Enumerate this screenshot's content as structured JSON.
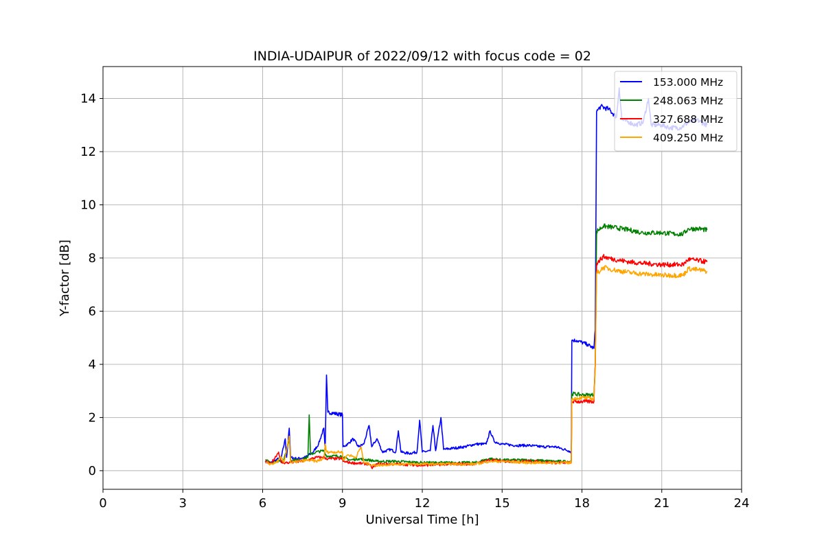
{
  "chart_data": {
    "type": "line",
    "title": "INDIA-UDAIPUR of 2022/09/12 with focus code = 02",
    "xlabel": "Universal Time [h]",
    "ylabel": "Y-factor [dB]",
    "xlim": [
      0,
      24
    ],
    "ylim": [
      -0.7,
      15.2
    ],
    "xticks": [
      0,
      3,
      6,
      9,
      12,
      15,
      18,
      21,
      24
    ],
    "yticks": [
      0,
      2,
      4,
      6,
      8,
      10,
      12,
      14
    ],
    "grid": true,
    "legend_position": "top-right",
    "series": [
      {
        "name": "153.000 MHz",
        "color": "#0000ff",
        "points": [
          [
            6.1,
            0.35
          ],
          [
            6.3,
            0.3
          ],
          [
            6.5,
            0.4
          ],
          [
            6.7,
            0.5
          ],
          [
            6.85,
            1.2
          ],
          [
            6.9,
            0.5
          ],
          [
            7.0,
            1.6
          ],
          [
            7.05,
            0.5
          ],
          [
            7.3,
            0.45
          ],
          [
            7.6,
            0.5
          ],
          [
            7.9,
            0.7
          ],
          [
            8.1,
            1.0
          ],
          [
            8.3,
            1.6
          ],
          [
            8.35,
            0.8
          ],
          [
            8.4,
            3.6
          ],
          [
            8.45,
            2.2
          ],
          [
            9.0,
            2.1
          ],
          [
            9.02,
            0.9
          ],
          [
            9.2,
            1.0
          ],
          [
            9.4,
            1.2
          ],
          [
            9.6,
            0.9
          ],
          [
            9.8,
            1.0
          ],
          [
            10.0,
            1.7
          ],
          [
            10.1,
            0.9
          ],
          [
            10.3,
            1.2
          ],
          [
            10.5,
            0.7
          ],
          [
            10.8,
            0.8
          ],
          [
            11.0,
            0.7
          ],
          [
            11.1,
            1.5
          ],
          [
            11.2,
            0.7
          ],
          [
            11.5,
            0.65
          ],
          [
            11.8,
            0.7
          ],
          [
            11.9,
            1.9
          ],
          [
            12.0,
            0.7
          ],
          [
            12.3,
            0.75
          ],
          [
            12.4,
            1.7
          ],
          [
            12.5,
            0.75
          ],
          [
            12.7,
            2.0
          ],
          [
            12.8,
            0.8
          ],
          [
            13.2,
            0.85
          ],
          [
            13.6,
            0.9
          ],
          [
            14.0,
            1.0
          ],
          [
            14.4,
            1.0
          ],
          [
            14.55,
            1.5
          ],
          [
            14.7,
            1.1
          ],
          [
            15.0,
            1.0
          ],
          [
            15.5,
            0.95
          ],
          [
            16.0,
            0.95
          ],
          [
            16.5,
            0.9
          ],
          [
            17.0,
            0.9
          ],
          [
            17.5,
            0.75
          ],
          [
            17.6,
            0.7
          ],
          [
            17.62,
            4.9
          ],
          [
            17.8,
            4.9
          ],
          [
            18.2,
            4.75
          ],
          [
            18.45,
            4.6
          ],
          [
            18.5,
            5.3
          ],
          [
            18.55,
            13.5
          ],
          [
            18.7,
            13.7
          ],
          [
            19.0,
            13.6
          ],
          [
            19.3,
            13.3
          ],
          [
            19.4,
            14.4
          ],
          [
            19.5,
            13.2
          ],
          [
            19.8,
            13.1
          ],
          [
            20.0,
            13.0
          ],
          [
            20.3,
            13.1
          ],
          [
            20.5,
            14.0
          ],
          [
            20.6,
            13.0
          ],
          [
            21.0,
            13.0
          ],
          [
            21.3,
            12.9
          ],
          [
            21.7,
            12.9
          ],
          [
            22.0,
            13.1
          ],
          [
            22.3,
            13.2
          ],
          [
            22.7,
            13.0
          ]
        ]
      },
      {
        "name": "248.063 MHz",
        "color": "#008000",
        "points": [
          [
            6.1,
            0.4
          ],
          [
            6.3,
            0.3
          ],
          [
            6.5,
            0.35
          ],
          [
            6.8,
            0.4
          ],
          [
            7.0,
            1.2
          ],
          [
            7.05,
            0.4
          ],
          [
            7.4,
            0.4
          ],
          [
            7.7,
            0.5
          ],
          [
            7.75,
            2.1
          ],
          [
            7.8,
            0.6
          ],
          [
            8.0,
            0.7
          ],
          [
            8.3,
            0.75
          ],
          [
            8.4,
            0.55
          ],
          [
            9.0,
            0.55
          ],
          [
            9.02,
            0.5
          ],
          [
            9.3,
            0.4
          ],
          [
            9.6,
            0.45
          ],
          [
            10.0,
            0.4
          ],
          [
            10.3,
            0.35
          ],
          [
            11.0,
            0.35
          ],
          [
            12.0,
            0.3
          ],
          [
            13.0,
            0.3
          ],
          [
            14.0,
            0.3
          ],
          [
            14.5,
            0.45
          ],
          [
            15.0,
            0.4
          ],
          [
            16.0,
            0.4
          ],
          [
            17.0,
            0.35
          ],
          [
            17.6,
            0.35
          ],
          [
            17.62,
            2.9
          ],
          [
            18.0,
            2.85
          ],
          [
            18.45,
            2.85
          ],
          [
            18.5,
            4.0
          ],
          [
            18.55,
            9.0
          ],
          [
            18.8,
            9.2
          ],
          [
            19.2,
            9.15
          ],
          [
            19.8,
            9.05
          ],
          [
            20.3,
            8.95
          ],
          [
            21.0,
            8.95
          ],
          [
            21.5,
            8.9
          ],
          [
            21.8,
            8.9
          ],
          [
            22.0,
            9.1
          ],
          [
            22.4,
            9.1
          ],
          [
            22.7,
            9.05
          ]
        ]
      },
      {
        "name": "327.688 MHz",
        "color": "#ff0000",
        "points": [
          [
            6.1,
            0.35
          ],
          [
            6.3,
            0.25
          ],
          [
            6.6,
            0.7
          ],
          [
            6.7,
            0.3
          ],
          [
            7.0,
            0.3
          ],
          [
            7.4,
            0.35
          ],
          [
            7.7,
            0.4
          ],
          [
            8.0,
            0.5
          ],
          [
            8.3,
            0.5
          ],
          [
            8.4,
            0.45
          ],
          [
            9.0,
            0.45
          ],
          [
            9.02,
            0.35
          ],
          [
            9.3,
            0.3
          ],
          [
            10.0,
            0.25
          ],
          [
            10.1,
            0.1
          ],
          [
            10.3,
            0.25
          ],
          [
            11.0,
            0.25
          ],
          [
            12.0,
            0.2
          ],
          [
            13.0,
            0.25
          ],
          [
            14.0,
            0.25
          ],
          [
            14.5,
            0.4
          ],
          [
            15.0,
            0.35
          ],
          [
            16.0,
            0.35
          ],
          [
            17.0,
            0.3
          ],
          [
            17.6,
            0.3
          ],
          [
            17.62,
            2.6
          ],
          [
            18.0,
            2.6
          ],
          [
            18.45,
            2.6
          ],
          [
            18.5,
            4.0
          ],
          [
            18.55,
            7.8
          ],
          [
            18.8,
            8.05
          ],
          [
            19.2,
            7.95
          ],
          [
            19.8,
            7.85
          ],
          [
            20.3,
            7.8
          ],
          [
            21.0,
            7.75
          ],
          [
            21.8,
            7.75
          ],
          [
            22.0,
            7.95
          ],
          [
            22.4,
            7.9
          ],
          [
            22.7,
            7.85
          ]
        ]
      },
      {
        "name": "409.250 MHz",
        "color": "#ffa500",
        "points": [
          [
            6.1,
            0.3
          ],
          [
            6.3,
            0.25
          ],
          [
            6.5,
            0.3
          ],
          [
            6.7,
            0.5
          ],
          [
            6.8,
            0.3
          ],
          [
            7.0,
            1.3
          ],
          [
            7.05,
            0.3
          ],
          [
            7.4,
            0.35
          ],
          [
            7.7,
            0.4
          ],
          [
            8.0,
            0.35
          ],
          [
            8.3,
            0.45
          ],
          [
            8.35,
            1.0
          ],
          [
            8.4,
            0.7
          ],
          [
            9.0,
            0.7
          ],
          [
            9.02,
            0.4
          ],
          [
            9.2,
            0.6
          ],
          [
            9.5,
            0.5
          ],
          [
            9.7,
            0.9
          ],
          [
            9.8,
            0.3
          ],
          [
            10.0,
            0.25
          ],
          [
            10.2,
            0.2
          ],
          [
            11.0,
            0.25
          ],
          [
            12.0,
            0.25
          ],
          [
            13.0,
            0.25
          ],
          [
            14.0,
            0.25
          ],
          [
            14.5,
            0.35
          ],
          [
            15.0,
            0.35
          ],
          [
            16.0,
            0.3
          ],
          [
            17.0,
            0.3
          ],
          [
            17.6,
            0.3
          ],
          [
            17.62,
            2.7
          ],
          [
            18.0,
            2.75
          ],
          [
            18.45,
            2.7
          ],
          [
            18.5,
            3.8
          ],
          [
            18.55,
            7.4
          ],
          [
            18.8,
            7.65
          ],
          [
            19.2,
            7.55
          ],
          [
            19.8,
            7.45
          ],
          [
            20.3,
            7.4
          ],
          [
            21.0,
            7.35
          ],
          [
            21.8,
            7.35
          ],
          [
            22.0,
            7.6
          ],
          [
            22.4,
            7.55
          ],
          [
            22.7,
            7.5
          ]
        ]
      }
    ]
  }
}
